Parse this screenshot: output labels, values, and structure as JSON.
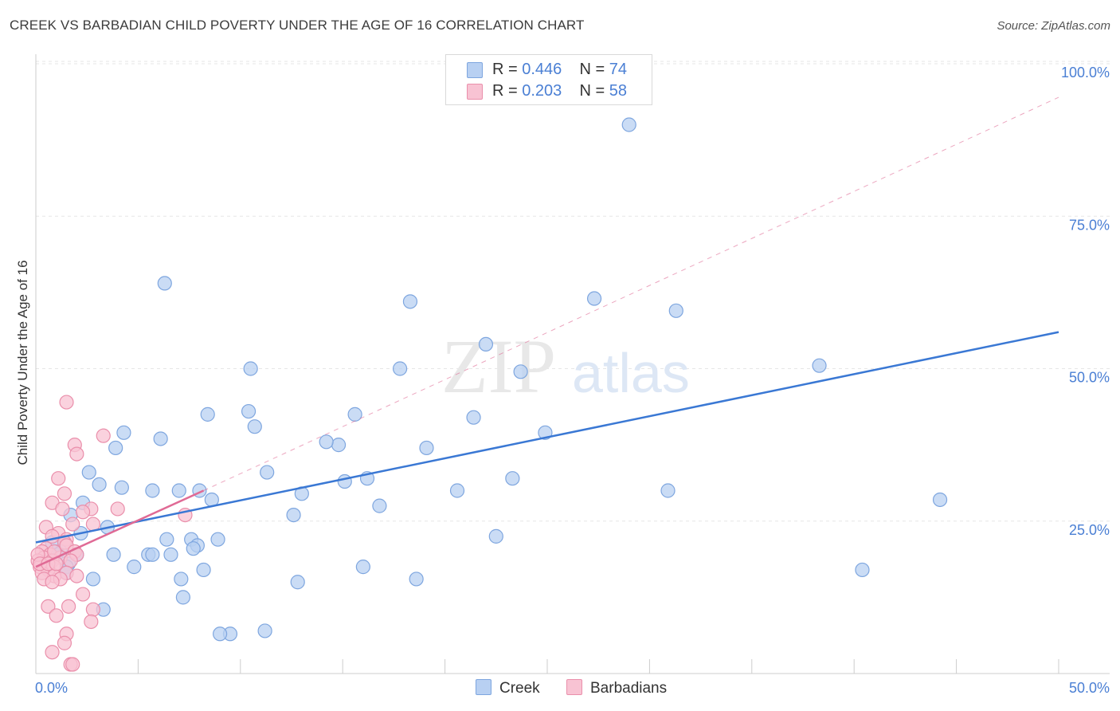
{
  "title": "CREEK VS BARBADIAN CHILD POVERTY UNDER THE AGE OF 16 CORRELATION CHART",
  "source": "Source: ZipAtlas.com",
  "watermark": {
    "zip": "ZIP",
    "atlas": "atlas"
  },
  "legend": {
    "r_label": "R =",
    "n_label": "N =",
    "creek": {
      "r": "0.446",
      "n": "74"
    },
    "barbadians": {
      "r": "0.203",
      "n": "58"
    }
  },
  "colors": {
    "creek_fill": "#b8d0f2",
    "creek_stroke": "#7ea6df",
    "creek_line": "#3a78d4",
    "barb_fill": "#f8c3d3",
    "barb_stroke": "#ea8fab",
    "barb_line": "#e06a95",
    "tick_label": "#4a7fd4",
    "grid": "#e6e6e6"
  },
  "chart_data": {
    "type": "scatter",
    "title": "CREEK VS BARBADIAN CHILD POVERTY UNDER THE AGE OF 16 CORRELATION CHART",
    "xlabel": "",
    "ylabel": "Child Poverty Under the Age of 16",
    "xlim": [
      0,
      50
    ],
    "ylim": [
      0,
      100
    ],
    "x_tick_labels": [
      "0.0%",
      "50.0%"
    ],
    "y_ticks": [
      25,
      50,
      75,
      100
    ],
    "y_tick_labels": [
      "25.0%",
      "50.0%",
      "75.0%",
      "100.0%"
    ],
    "grid": true,
    "legend_position": "top-center",
    "series": [
      {
        "name": "Creek",
        "points": [
          [
            29,
            90
          ],
          [
            6.3,
            64
          ],
          [
            18.3,
            61
          ],
          [
            27.3,
            61.5
          ],
          [
            31.3,
            59.5
          ],
          [
            22,
            54
          ],
          [
            10.5,
            50
          ],
          [
            17.8,
            50
          ],
          [
            23.7,
            49.5
          ],
          [
            38.3,
            50.5
          ],
          [
            8.4,
            42.5
          ],
          [
            10.4,
            43
          ],
          [
            15.6,
            42.5
          ],
          [
            21.4,
            42
          ],
          [
            10.7,
            40.5
          ],
          [
            24.9,
            39.5
          ],
          [
            4.3,
            39.5
          ],
          [
            6.1,
            38.5
          ],
          [
            14.8,
            37.5
          ],
          [
            14.2,
            38
          ],
          [
            19.1,
            37
          ],
          [
            3.9,
            37
          ],
          [
            2.6,
            33
          ],
          [
            11.3,
            33
          ],
          [
            3.1,
            31
          ],
          [
            15.1,
            31.5
          ],
          [
            16.2,
            32
          ],
          [
            23.3,
            32
          ],
          [
            4.2,
            30.5
          ],
          [
            5.7,
            30
          ],
          [
            7,
            30
          ],
          [
            8,
            30
          ],
          [
            13.0,
            29.5
          ],
          [
            20.6,
            30
          ],
          [
            30.9,
            30
          ],
          [
            8.6,
            28.5
          ],
          [
            16.8,
            27.5
          ],
          [
            44.2,
            28.5
          ],
          [
            2.3,
            28
          ],
          [
            12.6,
            26
          ],
          [
            1.7,
            26
          ],
          [
            3.5,
            24
          ],
          [
            2.2,
            23
          ],
          [
            22.5,
            22.5
          ],
          [
            6.4,
            22
          ],
          [
            7.6,
            22
          ],
          [
            8.9,
            22
          ],
          [
            7.9,
            21
          ],
          [
            7.7,
            20.5
          ],
          [
            1.2,
            20
          ],
          [
            1.0,
            19.5
          ],
          [
            3.8,
            19.5
          ],
          [
            5.5,
            19.5
          ],
          [
            5.7,
            19.5
          ],
          [
            6.6,
            19.5
          ],
          [
            2,
            19.5
          ],
          [
            1.6,
            18
          ],
          [
            1.5,
            17.5
          ],
          [
            4.8,
            17.5
          ],
          [
            16,
            17.5
          ],
          [
            40.4,
            17
          ],
          [
            8.2,
            17
          ],
          [
            1.5,
            16.5
          ],
          [
            2.8,
            15.5
          ],
          [
            7.1,
            15.5
          ],
          [
            12.8,
            15
          ],
          [
            18.6,
            15.5
          ],
          [
            7.2,
            12.5
          ],
          [
            3.3,
            10.5
          ],
          [
            11.2,
            7
          ],
          [
            9.5,
            6.5
          ],
          [
            9.0,
            6.5
          ],
          [
            1.0,
            20
          ],
          [
            0.8,
            21.5
          ]
        ]
      },
      {
        "name": "Barbadians",
        "points": [
          [
            1.5,
            44.5
          ],
          [
            3.3,
            39
          ],
          [
            1.9,
            37.5
          ],
          [
            2.0,
            36
          ],
          [
            1.1,
            32
          ],
          [
            1.4,
            29.5
          ],
          [
            0.8,
            28
          ],
          [
            1.3,
            27
          ],
          [
            2.7,
            27
          ],
          [
            4.0,
            27
          ],
          [
            2.3,
            26.5
          ],
          [
            7.3,
            26
          ],
          [
            1.8,
            24.5
          ],
          [
            0.5,
            24
          ],
          [
            1.1,
            23
          ],
          [
            0.8,
            22.5
          ],
          [
            1.5,
            22
          ],
          [
            2.8,
            24.5
          ],
          [
            1.4,
            21.5
          ],
          [
            1.5,
            21
          ],
          [
            0.5,
            20.5
          ],
          [
            0.3,
            20
          ],
          [
            1.9,
            20
          ],
          [
            2.0,
            19.5
          ],
          [
            0.7,
            19.5
          ],
          [
            0.4,
            19
          ],
          [
            1.2,
            19
          ],
          [
            0.1,
            18.5
          ],
          [
            0.3,
            18
          ],
          [
            0.8,
            18.5
          ],
          [
            1.7,
            18.5
          ],
          [
            0.5,
            17.5
          ],
          [
            0.2,
            17.5
          ],
          [
            0.9,
            17.5
          ],
          [
            0.6,
            17
          ],
          [
            0.3,
            16.5
          ],
          [
            1.5,
            16.5
          ],
          [
            0.9,
            16
          ],
          [
            2.0,
            16
          ],
          [
            1.2,
            15.5
          ],
          [
            0.4,
            15.5
          ],
          [
            0.8,
            15
          ],
          [
            2.3,
            13
          ],
          [
            0.6,
            11
          ],
          [
            1.6,
            11
          ],
          [
            2.8,
            10.5
          ],
          [
            1.0,
            9.5
          ],
          [
            2.7,
            8.5
          ],
          [
            1.5,
            6.5
          ],
          [
            1.4,
            5
          ],
          [
            0.8,
            3.5
          ],
          [
            1.7,
            1.5
          ],
          [
            1.8,
            1.5
          ],
          [
            0.1,
            19.5
          ],
          [
            0.2,
            18
          ],
          [
            0.6,
            18
          ],
          [
            1.0,
            18
          ],
          [
            0.9,
            20
          ]
        ]
      }
    ],
    "trend_lines": [
      {
        "series": "Creek",
        "style": "solid",
        "from": [
          0,
          21.5
        ],
        "to": [
          50,
          56
        ]
      },
      {
        "series": "Barbadians",
        "style": "solid",
        "from": [
          0,
          17.5
        ],
        "to": [
          8.2,
          30
        ]
      },
      {
        "series": "Barbadians",
        "style": "dashed",
        "from": [
          8.2,
          30
        ],
        "to": [
          50,
          94.5
        ]
      }
    ]
  }
}
